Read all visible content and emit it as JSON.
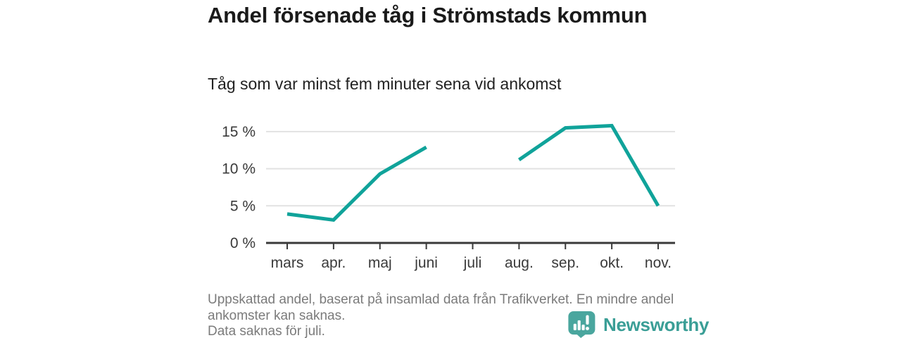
{
  "chart_data": {
    "type": "line",
    "title": "Andel försenade tåg i Strömstads kommun",
    "subtitle": "Tåg som var minst fem minuter sena vid ankomst",
    "categories": [
      "mars",
      "apr.",
      "maj",
      "juni",
      "juli",
      "aug.",
      "sep.",
      "okt.",
      "nov."
    ],
    "series": [
      {
        "name": "Andel försenade tåg",
        "values": [
          3.9,
          3.1,
          9.3,
          12.9,
          null,
          11.2,
          15.5,
          15.8,
          5.0
        ]
      }
    ],
    "ylim": [
      0,
      17
    ],
    "yticks": [
      0,
      5,
      10,
      15
    ],
    "ytick_suffix": " %",
    "grid": true,
    "legend": "none",
    "line_color": "#10a39a",
    "axis_color": "#3a3a3a",
    "grid_color": "#e2e2e2",
    "gap_note": "Data saknas för juli."
  },
  "footer": {
    "source_note": "Uppskattad andel, baserat på insamlad data från Trafikverket. En mindre andel ankomster kan saknas.",
    "missing_note": "Data saknas för juli.",
    "brand": {
      "name": "Newsworthy",
      "icon": "bar-chart-speech-bubble-icon",
      "icon_color": "#4aa69e",
      "wordmark_color": "#3a9e96"
    }
  }
}
